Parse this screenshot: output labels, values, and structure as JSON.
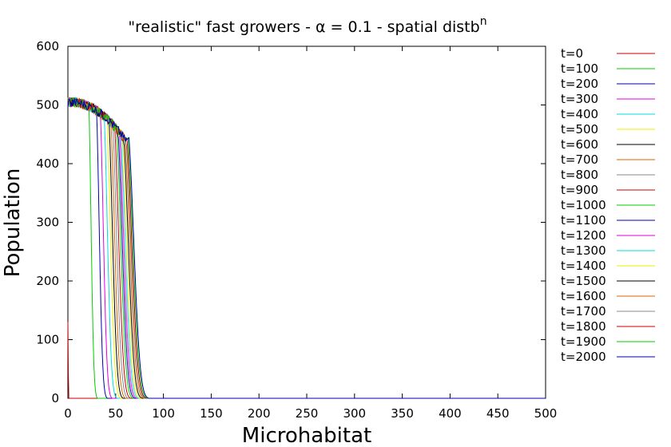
{
  "chart_data": {
    "type": "line",
    "title": "\"realistic\" fast growers - α = 0.1 - spatial distb",
    "title_sup": "n",
    "xlabel": "Microhabitat",
    "ylabel": "Population",
    "xlim": [
      0,
      500
    ],
    "ylim": [
      0,
      600
    ],
    "x_ticks": [
      0,
      50,
      100,
      150,
      200,
      250,
      300,
      350,
      400,
      450,
      500
    ],
    "y_ticks": [
      0,
      100,
      200,
      300,
      400,
      500,
      600
    ],
    "grid": false,
    "legend_position": "right",
    "plateau": {
      "start": 505,
      "end_at_x": 60,
      "end": 440,
      "noise": 8
    },
    "series": [
      {
        "name": "t=0",
        "color": "#cc0000",
        "front": 0
      },
      {
        "name": "t=100",
        "color": "#00cc00",
        "front": 22
      },
      {
        "name": "t=200",
        "color": "#0000b0",
        "front": 30
      },
      {
        "name": "t=300",
        "color": "#e000e0",
        "front": 34
      },
      {
        "name": "t=400",
        "color": "#00dddd",
        "front": 38
      },
      {
        "name": "t=500",
        "color": "#eeee00",
        "front": 41
      },
      {
        "name": "t=600",
        "color": "#000000",
        "front": 43
      },
      {
        "name": "t=700",
        "color": "#dd6600",
        "front": 45
      },
      {
        "name": "t=800",
        "color": "#888888",
        "front": 47
      },
      {
        "name": "t=900",
        "color": "#cc0000",
        "front": 49
      },
      {
        "name": "t=1000",
        "color": "#00cc00",
        "front": 51
      },
      {
        "name": "t=1100",
        "color": "#0000b0",
        "front": 52.5
      },
      {
        "name": "t=1200",
        "color": "#e000e0",
        "front": 54
      },
      {
        "name": "t=1300",
        "color": "#00dddd",
        "front": 55.5
      },
      {
        "name": "t=1400",
        "color": "#eeee00",
        "front": 57
      },
      {
        "name": "t=1500",
        "color": "#000000",
        "front": 58.5
      },
      {
        "name": "t=1600",
        "color": "#dd6600",
        "front": 60
      },
      {
        "name": "t=1700",
        "color": "#888888",
        "front": 61
      },
      {
        "name": "t=1800",
        "color": "#cc0000",
        "front": 62
      },
      {
        "name": "t=1900",
        "color": "#00cc00",
        "front": 63
      },
      {
        "name": "t=2000",
        "color": "#0000b0",
        "front": 64
      }
    ]
  }
}
